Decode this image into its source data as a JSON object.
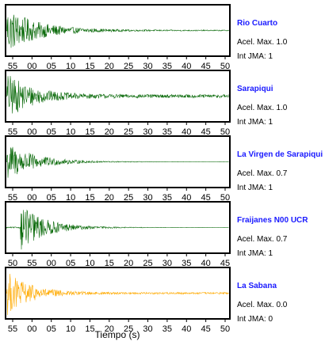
{
  "chart_data": {
    "type": "line",
    "xlabel": "Tiempo (s)",
    "series_colors": {
      "green": "#0a6a0a",
      "orange": "#ffaa00"
    },
    "panels": [
      {
        "name": "Rio Cuarto",
        "accel_label": "Acel. Max. 1.0",
        "jma_label": "Int JMA: 1",
        "color": "#0a6a0a",
        "amplitude": 0.9,
        "onset": 0.0,
        "decay": 7,
        "noise": 0.08,
        "ticks": [
          "55",
          "00",
          "05",
          "10",
          "15",
          "20",
          "25",
          "30",
          "35",
          "40",
          "45",
          "50"
        ],
        "tick_range": [
          52.3,
          52.0
        ]
      },
      {
        "name": "Sarapiqui",
        "accel_label": "Acel. Max. 1.0",
        "jma_label": "Int JMA: 1",
        "color": "#0a6a0a",
        "amplitude": 0.9,
        "onset": 0.0,
        "decay": 9,
        "noise": 0.28,
        "ticks": [
          "55",
          "00",
          "05",
          "10",
          "15",
          "20",
          "25",
          "30",
          "35",
          "40",
          "45",
          "50"
        ],
        "tick_range": [
          51.0,
          50.8
        ]
      },
      {
        "name": "La Virgen de Sarapiqui",
        "accel_label": "Acel. Max. 0.7",
        "jma_label": "Int JMA: 1",
        "color": "#0a6a0a",
        "amplitude": 0.8,
        "onset": 0.0,
        "decay": 8,
        "noise": 0.02,
        "ticks": [
          "55",
          "00",
          "05",
          "10",
          "15",
          "20",
          "25",
          "30",
          "35",
          "40",
          "45",
          "50"
        ],
        "tick_range": [
          52.3,
          52.0
        ]
      },
      {
        "name": "Fraijanes N00 UCR",
        "accel_label": "Acel. Max. 0.7",
        "jma_label": "Int JMA: 1",
        "color": "#0a6a0a",
        "amplitude": 0.95,
        "onset": 6.0,
        "decay": 9,
        "noise": 0.02,
        "ticks": [
          "50",
          "55",
          "00",
          "05",
          "10",
          "15",
          "20",
          "25",
          "30",
          "35",
          "40",
          "45"
        ],
        "tick_range": [
          47.5,
          47.8
        ]
      },
      {
        "name": "La Sabana",
        "accel_label": "Acel. Max. 0.0",
        "jma_label": "Int JMA: 0",
        "color": "#ffaa00",
        "amplitude": 0.9,
        "onset": 0.0,
        "decay": 10,
        "noise": 0.15,
        "ticks": [
          "55",
          "00",
          "05",
          "10",
          "15",
          "20",
          "25",
          "30",
          "35",
          "40",
          "45",
          "50"
        ],
        "tick_range": [
          52.3,
          52.0
        ]
      }
    ]
  }
}
